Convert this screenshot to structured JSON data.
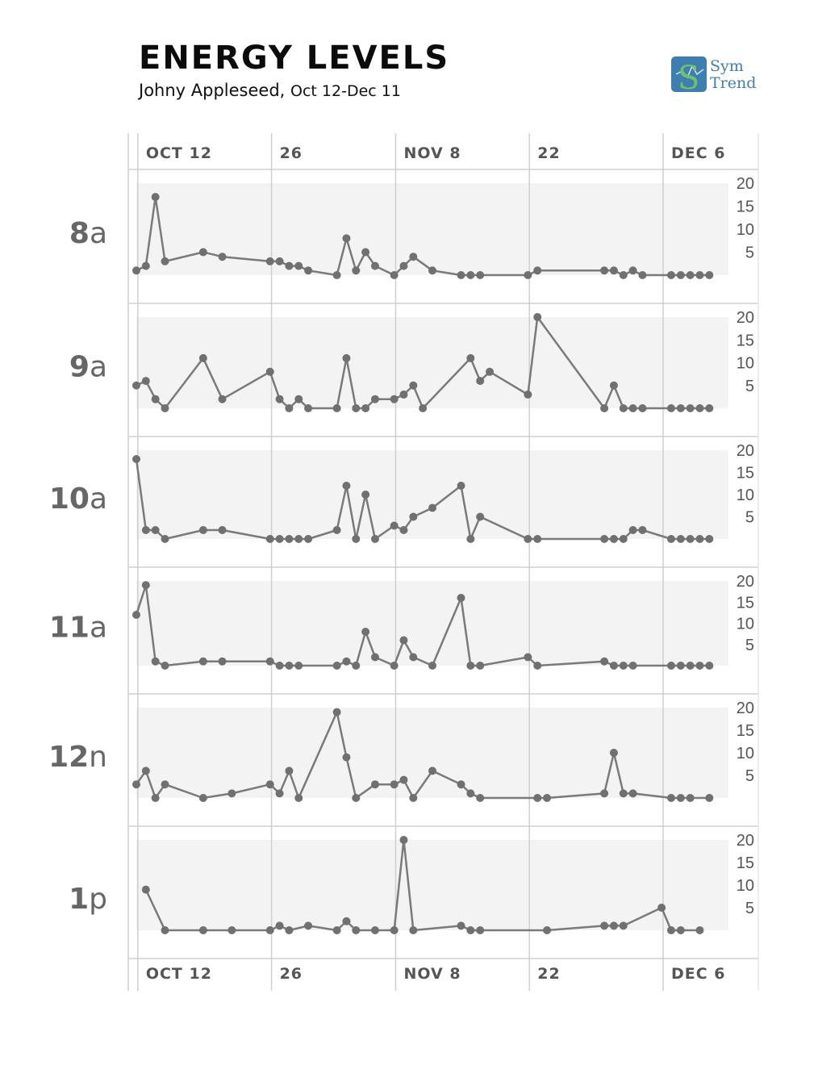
{
  "header": {
    "title": "ENERGY LEVELS",
    "subtitle_name": "Johny Appleseed,",
    "subtitle_range": "Oct 12-Dec 11"
  },
  "logo": {
    "line1": "Sym",
    "line2": "Trend"
  },
  "colors": {
    "line": "#7a7a7a",
    "point": "#707070",
    "band": "#f3f3f3",
    "grid": "#cfcfcf",
    "text": "#555555"
  },
  "chart_data": {
    "type": "line",
    "title": "ENERGY LEVELS",
    "x_start": "2017-10-11",
    "x_end": "2017-12-12",
    "x_ticks": [
      {
        "label": "OCT 12",
        "date": "2017-10-12"
      },
      {
        "label": "26",
        "date": "2017-10-26"
      },
      {
        "label": "NOV 8",
        "date": "2017-11-08"
      },
      {
        "label": "22",
        "date": "2017-11-22"
      },
      {
        "label": "DEC 6",
        "date": "2017-12-06"
      }
    ],
    "y_ticks": [
      5,
      10,
      15,
      20
    ],
    "ylim": [
      0,
      20
    ],
    "grid": true,
    "panels": [
      {
        "name": "8",
        "suffix": "a",
        "points": [
          [
            "2017-10-11",
            1
          ],
          [
            "2017-10-12",
            2
          ],
          [
            "2017-10-13",
            17
          ],
          [
            "2017-10-14",
            3
          ],
          [
            "2017-10-18",
            5
          ],
          [
            "2017-10-20",
            4
          ],
          [
            "2017-10-25",
            3
          ],
          [
            "2017-10-26",
            3
          ],
          [
            "2017-10-27",
            2
          ],
          [
            "2017-10-28",
            2
          ],
          [
            "2017-10-29",
            1
          ],
          [
            "2017-11-01",
            0
          ],
          [
            "2017-11-02",
            8
          ],
          [
            "2017-11-03",
            1
          ],
          [
            "2017-11-04",
            5
          ],
          [
            "2017-11-05",
            2
          ],
          [
            "2017-11-07",
            0
          ],
          [
            "2017-11-08",
            2
          ],
          [
            "2017-11-09",
            4
          ],
          [
            "2017-11-11",
            1
          ],
          [
            "2017-11-14",
            0
          ],
          [
            "2017-11-15",
            0
          ],
          [
            "2017-11-16",
            0
          ],
          [
            "2017-11-21",
            0
          ],
          [
            "2017-11-22",
            1
          ],
          [
            "2017-11-29",
            1
          ],
          [
            "2017-11-30",
            1
          ],
          [
            "2017-12-01",
            0
          ],
          [
            "2017-12-02",
            1
          ],
          [
            "2017-12-03",
            0
          ],
          [
            "2017-12-06",
            0
          ],
          [
            "2017-12-07",
            0
          ],
          [
            "2017-12-08",
            0
          ],
          [
            "2017-12-09",
            0
          ],
          [
            "2017-12-10",
            0
          ]
        ]
      },
      {
        "name": "9",
        "suffix": "a",
        "points": [
          [
            "2017-10-11",
            5
          ],
          [
            "2017-10-12",
            6
          ],
          [
            "2017-10-13",
            2
          ],
          [
            "2017-10-14",
            0
          ],
          [
            "2017-10-18",
            11
          ],
          [
            "2017-10-20",
            2
          ],
          [
            "2017-10-25",
            8
          ],
          [
            "2017-10-26",
            2
          ],
          [
            "2017-10-27",
            0
          ],
          [
            "2017-10-28",
            2
          ],
          [
            "2017-10-29",
            0
          ],
          [
            "2017-11-01",
            0
          ],
          [
            "2017-11-02",
            11
          ],
          [
            "2017-11-03",
            0
          ],
          [
            "2017-11-04",
            0
          ],
          [
            "2017-11-05",
            2
          ],
          [
            "2017-11-07",
            2
          ],
          [
            "2017-11-08",
            3
          ],
          [
            "2017-11-09",
            5
          ],
          [
            "2017-11-10",
            0
          ],
          [
            "2017-11-15",
            11
          ],
          [
            "2017-11-16",
            6
          ],
          [
            "2017-11-17",
            8
          ],
          [
            "2017-11-21",
            3
          ],
          [
            "2017-11-22",
            20
          ],
          [
            "2017-11-29",
            0
          ],
          [
            "2017-11-30",
            5
          ],
          [
            "2017-12-01",
            0
          ],
          [
            "2017-12-02",
            0
          ],
          [
            "2017-12-03",
            0
          ],
          [
            "2017-12-06",
            0
          ],
          [
            "2017-12-07",
            0
          ],
          [
            "2017-12-08",
            0
          ],
          [
            "2017-12-09",
            0
          ],
          [
            "2017-12-10",
            0
          ]
        ]
      },
      {
        "name": "10",
        "suffix": "a",
        "points": [
          [
            "2017-10-11",
            18
          ],
          [
            "2017-10-12",
            2
          ],
          [
            "2017-10-13",
            2
          ],
          [
            "2017-10-14",
            0
          ],
          [
            "2017-10-18",
            2
          ],
          [
            "2017-10-20",
            2
          ],
          [
            "2017-10-25",
            0
          ],
          [
            "2017-10-26",
            0
          ],
          [
            "2017-10-27",
            0
          ],
          [
            "2017-10-28",
            0
          ],
          [
            "2017-10-29",
            0
          ],
          [
            "2017-11-01",
            2
          ],
          [
            "2017-11-02",
            12
          ],
          [
            "2017-11-03",
            0
          ],
          [
            "2017-11-04",
            10
          ],
          [
            "2017-11-05",
            0
          ],
          [
            "2017-11-07",
            3
          ],
          [
            "2017-11-08",
            2
          ],
          [
            "2017-11-09",
            5
          ],
          [
            "2017-11-11",
            7
          ],
          [
            "2017-11-14",
            12
          ],
          [
            "2017-11-15",
            0
          ],
          [
            "2017-11-16",
            5
          ],
          [
            "2017-11-21",
            0
          ],
          [
            "2017-11-22",
            0
          ],
          [
            "2017-11-29",
            0
          ],
          [
            "2017-11-30",
            0
          ],
          [
            "2017-12-01",
            0
          ],
          [
            "2017-12-02",
            2
          ],
          [
            "2017-12-03",
            2
          ],
          [
            "2017-12-06",
            0
          ],
          [
            "2017-12-07",
            0
          ],
          [
            "2017-12-08",
            0
          ],
          [
            "2017-12-09",
            0
          ],
          [
            "2017-12-10",
            0
          ]
        ]
      },
      {
        "name": "11",
        "suffix": "a",
        "points": [
          [
            "2017-10-11",
            12
          ],
          [
            "2017-10-12",
            19
          ],
          [
            "2017-10-13",
            1
          ],
          [
            "2017-10-14",
            0
          ],
          [
            "2017-10-18",
            1
          ],
          [
            "2017-10-20",
            1
          ],
          [
            "2017-10-25",
            1
          ],
          [
            "2017-10-26",
            0
          ],
          [
            "2017-10-27",
            0
          ],
          [
            "2017-10-28",
            0
          ],
          [
            "2017-11-01",
            0
          ],
          [
            "2017-11-02",
            1
          ],
          [
            "2017-11-03",
            0
          ],
          [
            "2017-11-04",
            8
          ],
          [
            "2017-11-05",
            2
          ],
          [
            "2017-11-07",
            0
          ],
          [
            "2017-11-08",
            6
          ],
          [
            "2017-11-09",
            2
          ],
          [
            "2017-11-11",
            0
          ],
          [
            "2017-11-14",
            16
          ],
          [
            "2017-11-15",
            0
          ],
          [
            "2017-11-16",
            0
          ],
          [
            "2017-11-21",
            2
          ],
          [
            "2017-11-22",
            0
          ],
          [
            "2017-11-29",
            1
          ],
          [
            "2017-11-30",
            0
          ],
          [
            "2017-12-01",
            0
          ],
          [
            "2017-12-02",
            0
          ],
          [
            "2017-12-06",
            0
          ],
          [
            "2017-12-07",
            0
          ],
          [
            "2017-12-08",
            0
          ],
          [
            "2017-12-09",
            0
          ],
          [
            "2017-12-10",
            0
          ]
        ]
      },
      {
        "name": "12",
        "suffix": "n",
        "points": [
          [
            "2017-10-11",
            3
          ],
          [
            "2017-10-12",
            6
          ],
          [
            "2017-10-13",
            0
          ],
          [
            "2017-10-14",
            3
          ],
          [
            "2017-10-18",
            0
          ],
          [
            "2017-10-21",
            1
          ],
          [
            "2017-10-25",
            3
          ],
          [
            "2017-10-26",
            1
          ],
          [
            "2017-10-27",
            6
          ],
          [
            "2017-10-28",
            0
          ],
          [
            "2017-11-01",
            19
          ],
          [
            "2017-11-02",
            9
          ],
          [
            "2017-11-03",
            0
          ],
          [
            "2017-11-05",
            3
          ],
          [
            "2017-11-07",
            3
          ],
          [
            "2017-11-08",
            4
          ],
          [
            "2017-11-09",
            0
          ],
          [
            "2017-11-11",
            6
          ],
          [
            "2017-11-14",
            3
          ],
          [
            "2017-11-15",
            1
          ],
          [
            "2017-11-16",
            0
          ],
          [
            "2017-11-22",
            0
          ],
          [
            "2017-11-23",
            0
          ],
          [
            "2017-11-29",
            1
          ],
          [
            "2017-11-30",
            10
          ],
          [
            "2017-12-01",
            1
          ],
          [
            "2017-12-02",
            1
          ],
          [
            "2017-12-06",
            0
          ],
          [
            "2017-12-07",
            0
          ],
          [
            "2017-12-08",
            0
          ],
          [
            "2017-12-10",
            0
          ]
        ]
      },
      {
        "name": "1",
        "suffix": "p",
        "points": [
          [
            "2017-10-12",
            9
          ],
          [
            "2017-10-14",
            0
          ],
          [
            "2017-10-18",
            0
          ],
          [
            "2017-10-21",
            0
          ],
          [
            "2017-10-25",
            0
          ],
          [
            "2017-10-26",
            1
          ],
          [
            "2017-10-27",
            0
          ],
          [
            "2017-10-29",
            1
          ],
          [
            "2017-11-01",
            0
          ],
          [
            "2017-11-02",
            2
          ],
          [
            "2017-11-03",
            0
          ],
          [
            "2017-11-05",
            0
          ],
          [
            "2017-11-07",
            0
          ],
          [
            "2017-11-08",
            20
          ],
          [
            "2017-11-09",
            0
          ],
          [
            "2017-11-14",
            1
          ],
          [
            "2017-11-15",
            0
          ],
          [
            "2017-11-16",
            0
          ],
          [
            "2017-11-23",
            0
          ],
          [
            "2017-11-29",
            1
          ],
          [
            "2017-11-30",
            1
          ],
          [
            "2017-12-01",
            1
          ],
          [
            "2017-12-05",
            5
          ],
          [
            "2017-12-06",
            0
          ],
          [
            "2017-12-07",
            0
          ],
          [
            "2017-12-09",
            0
          ]
        ]
      }
    ]
  }
}
